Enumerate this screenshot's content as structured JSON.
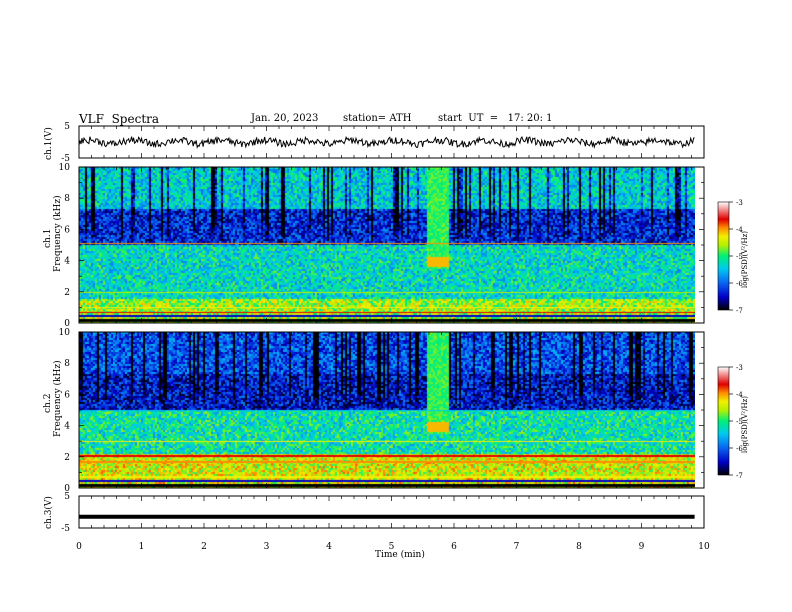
{
  "header": {
    "title": "VLF  Spectra",
    "date": "Jan. 20, 2023",
    "station": "station= ATH",
    "start": "start  UT  =   17: 20: 1"
  },
  "chart_data": [
    {
      "type": "line",
      "name": "ch1-waveform",
      "ylabel": "ch.1(V)",
      "ytick_labels": [
        "5",
        "-5"
      ],
      "ylim": [
        -5,
        5
      ],
      "xlim": [
        0,
        10
      ],
      "signal_level": 0.0,
      "notes": "noisy trace around 0 V"
    },
    {
      "type": "heatmap",
      "name": "ch1-spectrogram",
      "ylabel": "Frequency (kHz)",
      "channel_label": "ch.1",
      "yticks": [
        0,
        2,
        4,
        6,
        8,
        10
      ],
      "ylim": [
        0,
        10
      ],
      "xlim": [
        0,
        9.85
      ],
      "colorbar": {
        "label": "log(PSD)(V²/Hz)",
        "ticks": [
          "-3",
          "-4",
          "-5",
          "-6",
          "-7"
        ],
        "range": [
          -7,
          -3
        ]
      },
      "levels_by_frequency_khz": [
        {
          "from": 0,
          "to": 1.5,
          "level": -4.6
        },
        {
          "from": 1.5,
          "to": 5,
          "level": -5.3
        },
        {
          "from": 5,
          "to": 7.3,
          "level": -6.3
        },
        {
          "from": 7.3,
          "to": 10,
          "level": -5.4
        }
      ]
    },
    {
      "type": "heatmap",
      "name": "ch2-spectrogram",
      "ylabel": "Frequency (kHz)",
      "channel_label": "ch.2",
      "yticks": [
        0,
        2,
        4,
        6,
        8,
        10
      ],
      "ylim": [
        0,
        10
      ],
      "xlim": [
        0,
        9.85
      ],
      "colorbar": {
        "label": "log(PSD)(V²/Hz)",
        "ticks": [
          "-3",
          "-4",
          "-5",
          "-6",
          "-7"
        ],
        "range": [
          -7,
          -3
        ]
      },
      "levels_by_frequency_khz": [
        {
          "from": 0,
          "to": 2.2,
          "level": -4.4
        },
        {
          "from": 2.2,
          "to": 5,
          "level": -5.2
        },
        {
          "from": 5,
          "to": 7.3,
          "level": -6.4
        },
        {
          "from": 7.3,
          "to": 10,
          "level": -6.1
        }
      ]
    },
    {
      "type": "line",
      "name": "ch3-waveform",
      "ylabel": "ch.3(V)",
      "ytick_labels": [
        "5",
        "-5"
      ],
      "ylim": [
        -5,
        5
      ],
      "xlim": [
        0,
        10
      ],
      "signal_level": -1.5,
      "notes": "flat thick trace near -1.5 V"
    }
  ],
  "x_axis": {
    "label": "Time (min)",
    "ticks": [
      "0",
      "1",
      "2",
      "3",
      "4",
      "5",
      "6",
      "7",
      "8",
      "9",
      "10"
    ],
    "range": [
      0,
      10
    ]
  },
  "colors": {
    "spectrogram_colormap": [
      "#000000",
      "#0000c8",
      "#0a64f0",
      "#00c8f0",
      "#00f078",
      "#b4f000",
      "#f0f000",
      "#ff8c00",
      "#e00000",
      "#ffffff"
    ]
  }
}
